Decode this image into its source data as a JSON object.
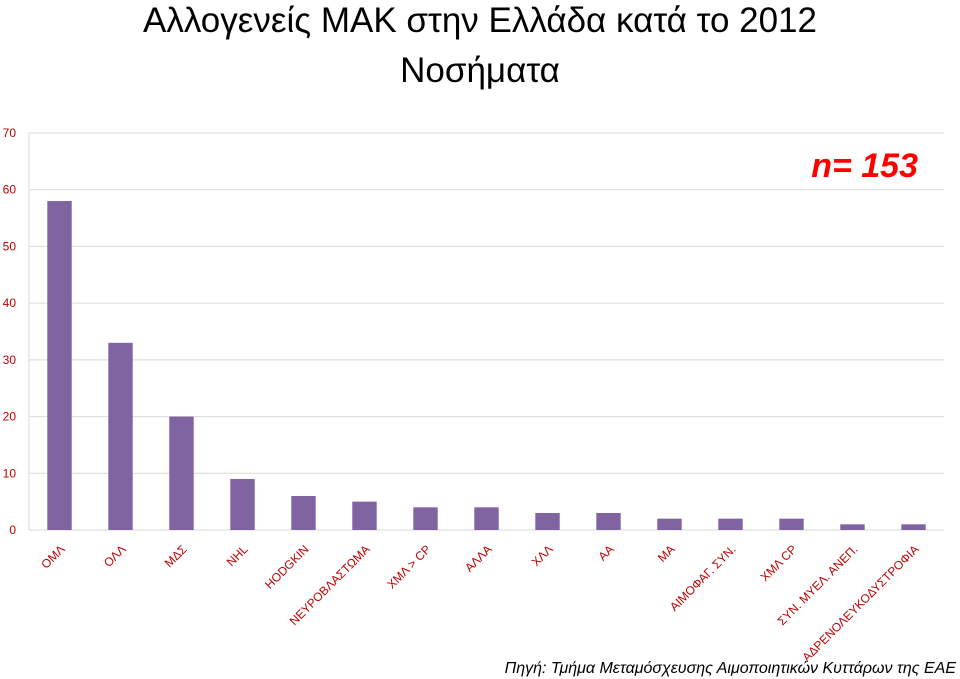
{
  "chart_data": {
    "type": "bar",
    "title": "Αλλογενείς ΜΑΚ στην Ελλάδα κατά το 2012",
    "subtitle": "Νοσήματα",
    "categories": [
      "ΟΜΛ",
      "ΟΛΛ",
      "ΜΔΣ",
      "NHL",
      "HODGKIN",
      "ΝΕΥΡΟΒΛΑΣΤΩΜΑ",
      "ΧΜΛ > CP",
      "ΑΛΛΑ",
      "ΧΛΛ",
      "ΑΑ",
      "ΜΑ",
      "ΑΙΜΟΦΑΓ. ΣΥΝ.",
      "ΧΜΛ CP",
      "ΣΥΝ. ΜΥΕΛ. ΑΝΕΠ.",
      "ΑΔΡΕΝΟΛΕΥΚΟΔΥΣΤΡΟΦΙΑ"
    ],
    "values": [
      58,
      33,
      20,
      9,
      6,
      5,
      4,
      4,
      3,
      3,
      2,
      2,
      2,
      1,
      1
    ],
    "ylim": [
      0,
      70
    ],
    "yticks": [
      "0",
      "10",
      "20",
      "30",
      "40",
      "50",
      "60",
      "70"
    ],
    "xlabel": "",
    "ylabel": "",
    "grid": true,
    "annotation": "n= 153",
    "source": "Πηγή: Τμήμα Μεταμόσχευσης Αιμοποιητικών Κυττάρων της ΕΑΕ",
    "colors": {
      "bar": "#8064a2",
      "grid": "#d9d9d9",
      "tick_text": "#c00000",
      "annotation": "#ff0000"
    }
  }
}
